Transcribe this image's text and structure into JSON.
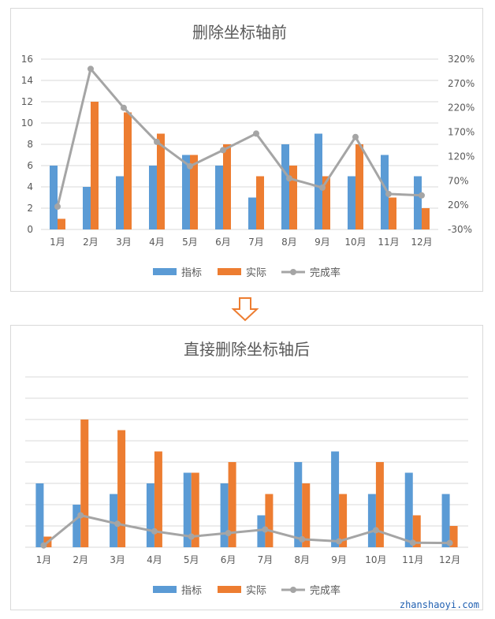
{
  "colors": {
    "target": "#5B9BD5",
    "actual": "#ED7D31",
    "rate": "#A5A5A5",
    "grid": "#D9D9D9",
    "text": "#595959",
    "arrow": "#ED7D31"
  },
  "watermark": "zhanshaoyi.com",
  "chart_data": [
    {
      "type": "bar+line",
      "title": "删除坐标轴前",
      "categories": [
        "1月",
        "2月",
        "3月",
        "4月",
        "5月",
        "6月",
        "7月",
        "8月",
        "9月",
        "10月",
        "11月",
        "12月"
      ],
      "series": [
        {
          "name": "指标",
          "type": "bar",
          "axis": "left",
          "values": [
            6,
            4,
            5,
            6,
            7,
            6,
            3,
            8,
            9,
            5,
            7,
            5
          ]
        },
        {
          "name": "实际",
          "type": "bar",
          "axis": "left",
          "values": [
            1,
            12,
            11,
            9,
            7,
            8,
            5,
            6,
            5,
            8,
            3,
            2
          ]
        },
        {
          "name": "完成率",
          "type": "line",
          "axis": "right",
          "values": [
            17,
            300,
            220,
            150,
            100,
            133,
            167,
            75,
            56,
            160,
            43,
            40
          ]
        }
      ],
      "ylim": [
        0,
        16
      ],
      "yticks": [
        "0",
        "2",
        "4",
        "6",
        "8",
        "10",
        "12",
        "14",
        "16"
      ],
      "y2lim": [
        -30,
        320
      ],
      "y2ticks": [
        "-30%",
        "20%",
        "70%",
        "120%",
        "170%",
        "220%",
        "270%",
        "320%"
      ],
      "legend": [
        "指标",
        "实际",
        "完成率"
      ],
      "legend_position": "bottom",
      "grid": true
    },
    {
      "type": "bar+line",
      "title": "直接删除坐标轴后",
      "categories": [
        "1月",
        "2月",
        "3月",
        "4月",
        "5月",
        "6月",
        "7月",
        "8月",
        "9月",
        "10月",
        "11月",
        "12月"
      ],
      "series": [
        {
          "name": "指标",
          "type": "bar",
          "values": [
            6,
            4,
            5,
            6,
            7,
            6,
            3,
            8,
            9,
            5,
            7,
            5
          ]
        },
        {
          "name": "实际",
          "type": "bar",
          "values": [
            1,
            12,
            11,
            9,
            7,
            8,
            5,
            6,
            5,
            8,
            3,
            2
          ]
        },
        {
          "name": "完成率",
          "type": "line",
          "values": [
            0.17,
            3.0,
            2.2,
            1.5,
            1.0,
            1.33,
            1.67,
            0.75,
            0.56,
            1.6,
            0.43,
            0.4
          ]
        }
      ],
      "ylim": [
        0,
        16
      ],
      "legend": [
        "指标",
        "实际",
        "完成率"
      ],
      "legend_position": "bottom",
      "grid": true,
      "axes_removed": true
    }
  ]
}
